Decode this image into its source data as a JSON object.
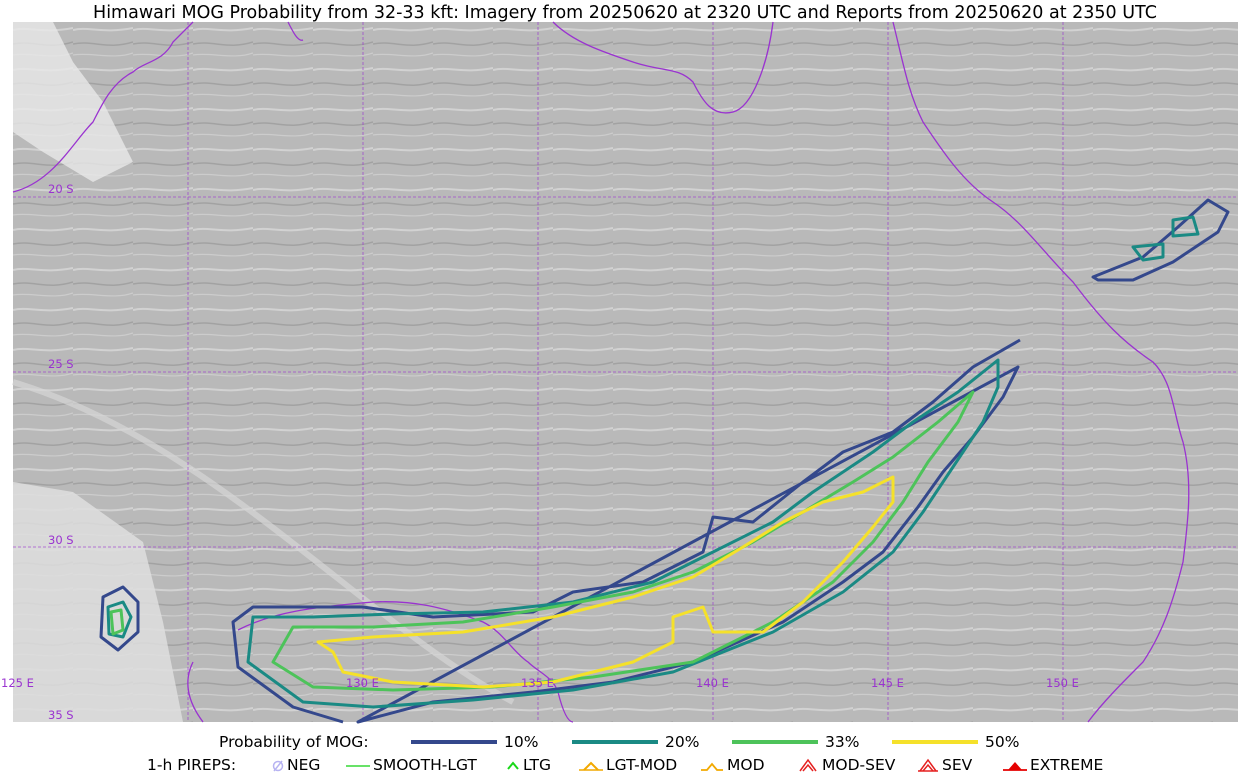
{
  "title": "Himawari MOG Probability from 32-33 kft: Imagery from 20250620 at 2320 UTC and Reports from 20250620 at 2350 UTC",
  "grid_labels": {
    "lat": [
      "20 S",
      "25 S",
      "30 S",
      "35 S"
    ],
    "lon": [
      "125 E",
      "130 E",
      "135 E",
      "140 E",
      "145 E",
      "150 E"
    ]
  },
  "legend_probability": {
    "label": "Probability of MOG:",
    "items": [
      {
        "label": "10%",
        "color": "#34488c"
      },
      {
        "label": "20%",
        "color": "#1a8a84"
      },
      {
        "label": "33%",
        "color": "#4dc35a"
      },
      {
        "label": "50%",
        "color": "#f5e12a"
      }
    ]
  },
  "legend_pireps": {
    "label": "1-h PIREPS:",
    "items": [
      {
        "label": "NEG",
        "icon": "neg-icon",
        "color": "#b7b3f2"
      },
      {
        "label": "SMOOTH-LGT",
        "icon": "smooth-lgt-line-icon",
        "color": "#36d936"
      },
      {
        "label": "LTG",
        "icon": "ltg-chevron-icon",
        "color": "#19d819"
      },
      {
        "label": "LGT-MOD",
        "icon": "lgt-mod-chevron-icon",
        "color": "#f2a900"
      },
      {
        "label": "MOD",
        "icon": "mod-chevron-icon",
        "color": "#f2a900"
      },
      {
        "label": "MOD-SEV",
        "icon": "mod-sev-chevron-icon",
        "color": "#e52020"
      },
      {
        "label": "SEV",
        "icon": "sev-chevron-icon",
        "color": "#e52020"
      },
      {
        "label": "EXTREME",
        "icon": "extreme-triangle-icon",
        "color": "#e50000"
      }
    ]
  },
  "colors": {
    "grid": "#9a33d0",
    "coastline": "#9a33d0",
    "background_imagery": "#b7b7b7"
  }
}
